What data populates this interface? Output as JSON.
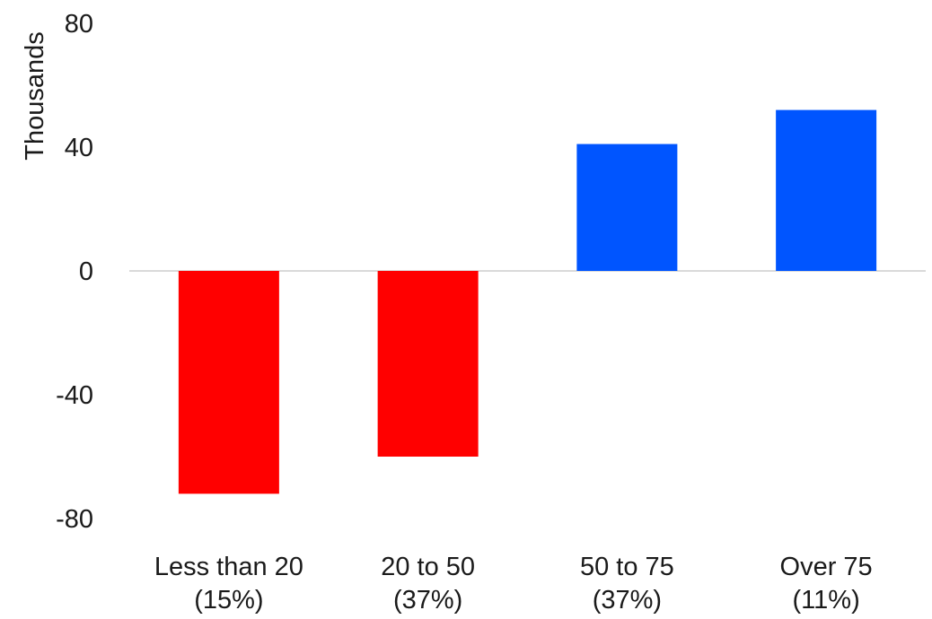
{
  "chart_data": {
    "type": "bar",
    "title": "",
    "xlabel": "",
    "ylabel": "Thousands",
    "ylim": [
      -80,
      80
    ],
    "yticks": [
      "80",
      "40",
      "0",
      "-40",
      "-80"
    ],
    "ytick_values": [
      80,
      40,
      0,
      -40,
      -80
    ],
    "categories": [
      {
        "line1": "Less than 20",
        "line2": "(15%)"
      },
      {
        "line1": "20 to 50",
        "line2": "(37%)"
      },
      {
        "line1": "50 to 75",
        "line2": "(37%)"
      },
      {
        "line1": "Over 75",
        "line2": "(11%)"
      }
    ],
    "values": [
      -72,
      -60,
      41,
      52
    ],
    "colors": {
      "negative": "#ff0000",
      "positive": "#0055ff",
      "zero_line": "#d9d9d9"
    },
    "grid": false,
    "legend": "none"
  }
}
